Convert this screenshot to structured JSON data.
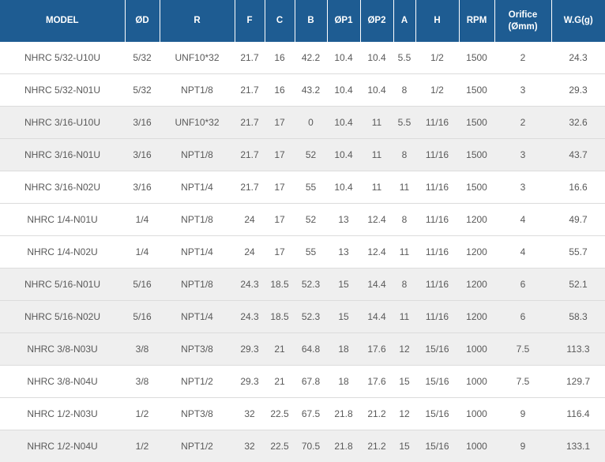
{
  "colors": {
    "header_bg": "#1e5c92",
    "header_text": "#ffffff",
    "cell_text": "#595959",
    "row_border": "#dcdcdc",
    "shaded_row_bg": "#efefef",
    "header_separator": "#ffffff"
  },
  "table": {
    "columns": [
      {
        "key": "model",
        "label": "MODEL"
      },
      {
        "key": "od",
        "label": "ØD"
      },
      {
        "key": "r",
        "label": "R"
      },
      {
        "key": "f",
        "label": "F"
      },
      {
        "key": "c",
        "label": "C"
      },
      {
        "key": "b",
        "label": "B"
      },
      {
        "key": "op1",
        "label": "ØP1"
      },
      {
        "key": "op2",
        "label": "ØP2"
      },
      {
        "key": "a",
        "label": "A"
      },
      {
        "key": "h",
        "label": "H"
      },
      {
        "key": "rpm",
        "label": "RPM"
      },
      {
        "key": "orifice",
        "label": "Orifice (Ømm)"
      },
      {
        "key": "wg",
        "label": "W.G(g)"
      }
    ],
    "rows": [
      [
        "NHRC 5/32-U10U",
        "5/32",
        "UNF10*32",
        "21.7",
        "16",
        "42.2",
        "10.4",
        "10.4",
        "5.5",
        "1/2",
        "1500",
        "2",
        "24.3"
      ],
      [
        "NHRC 5/32-N01U",
        "5/32",
        "NPT1/8",
        "21.7",
        "16",
        "43.2",
        "10.4",
        "10.4",
        "8",
        "1/2",
        "1500",
        "3",
        "29.3"
      ],
      [
        "NHRC 3/16-U10U",
        "3/16",
        "UNF10*32",
        "21.7",
        "17",
        "0",
        "10.4",
        "11",
        "5.5",
        "11/16",
        "1500",
        "2",
        "32.6"
      ],
      [
        "NHRC 3/16-N01U",
        "3/16",
        "NPT1/8",
        "21.7",
        "17",
        "52",
        "10.4",
        "11",
        "8",
        "11/16",
        "1500",
        "3",
        "43.7"
      ],
      [
        "NHRC 3/16-N02U",
        "3/16",
        "NPT1/4",
        "21.7",
        "17",
        "55",
        "10.4",
        "11",
        "11",
        "11/16",
        "1500",
        "3",
        "16.6"
      ],
      [
        "NHRC 1/4-N01U",
        "1/4",
        "NPT1/8",
        "24",
        "17",
        "52",
        "13",
        "12.4",
        "8",
        "11/16",
        "1200",
        "4",
        "49.7"
      ],
      [
        "NHRC 1/4-N02U",
        "1/4",
        "NPT1/4",
        "24",
        "17",
        "55",
        "13",
        "12.4",
        "11",
        "11/16",
        "1200",
        "4",
        "55.7"
      ],
      [
        "NHRC 5/16-N01U",
        "5/16",
        "NPT1/8",
        "24.3",
        "18.5",
        "52.3",
        "15",
        "14.4",
        "8",
        "11/16",
        "1200",
        "6",
        "52.1"
      ],
      [
        "NHRC 5/16-N02U",
        "5/16",
        "NPT1/4",
        "24.3",
        "18.5",
        "52.3",
        "15",
        "14.4",
        "11",
        "11/16",
        "1200",
        "6",
        "58.3"
      ],
      [
        "NHRC 3/8-N03U",
        "3/8",
        "NPT3/8",
        "29.3",
        "21",
        "64.8",
        "18",
        "17.6",
        "12",
        "15/16",
        "1000",
        "7.5",
        "113.3"
      ],
      [
        "NHRC 3/8-N04U",
        "3/8",
        "NPT1/2",
        "29.3",
        "21",
        "67.8",
        "18",
        "17.6",
        "15",
        "15/16",
        "1000",
        "7.5",
        "129.7"
      ],
      [
        "NHRC 1/2-N03U",
        "1/2",
        "NPT3/8",
        "32",
        "22.5",
        "67.5",
        "21.8",
        "21.2",
        "12",
        "15/16",
        "1000",
        "9",
        "116.4"
      ],
      [
        "NHRC 1/2-N04U",
        "1/2",
        "NPT1/2",
        "32",
        "22.5",
        "70.5",
        "21.8",
        "21.2",
        "15",
        "15/16",
        "1000",
        "9",
        "133.1"
      ]
    ],
    "shaded_row_indices": [
      2,
      3,
      7,
      8,
      9,
      12
    ]
  }
}
